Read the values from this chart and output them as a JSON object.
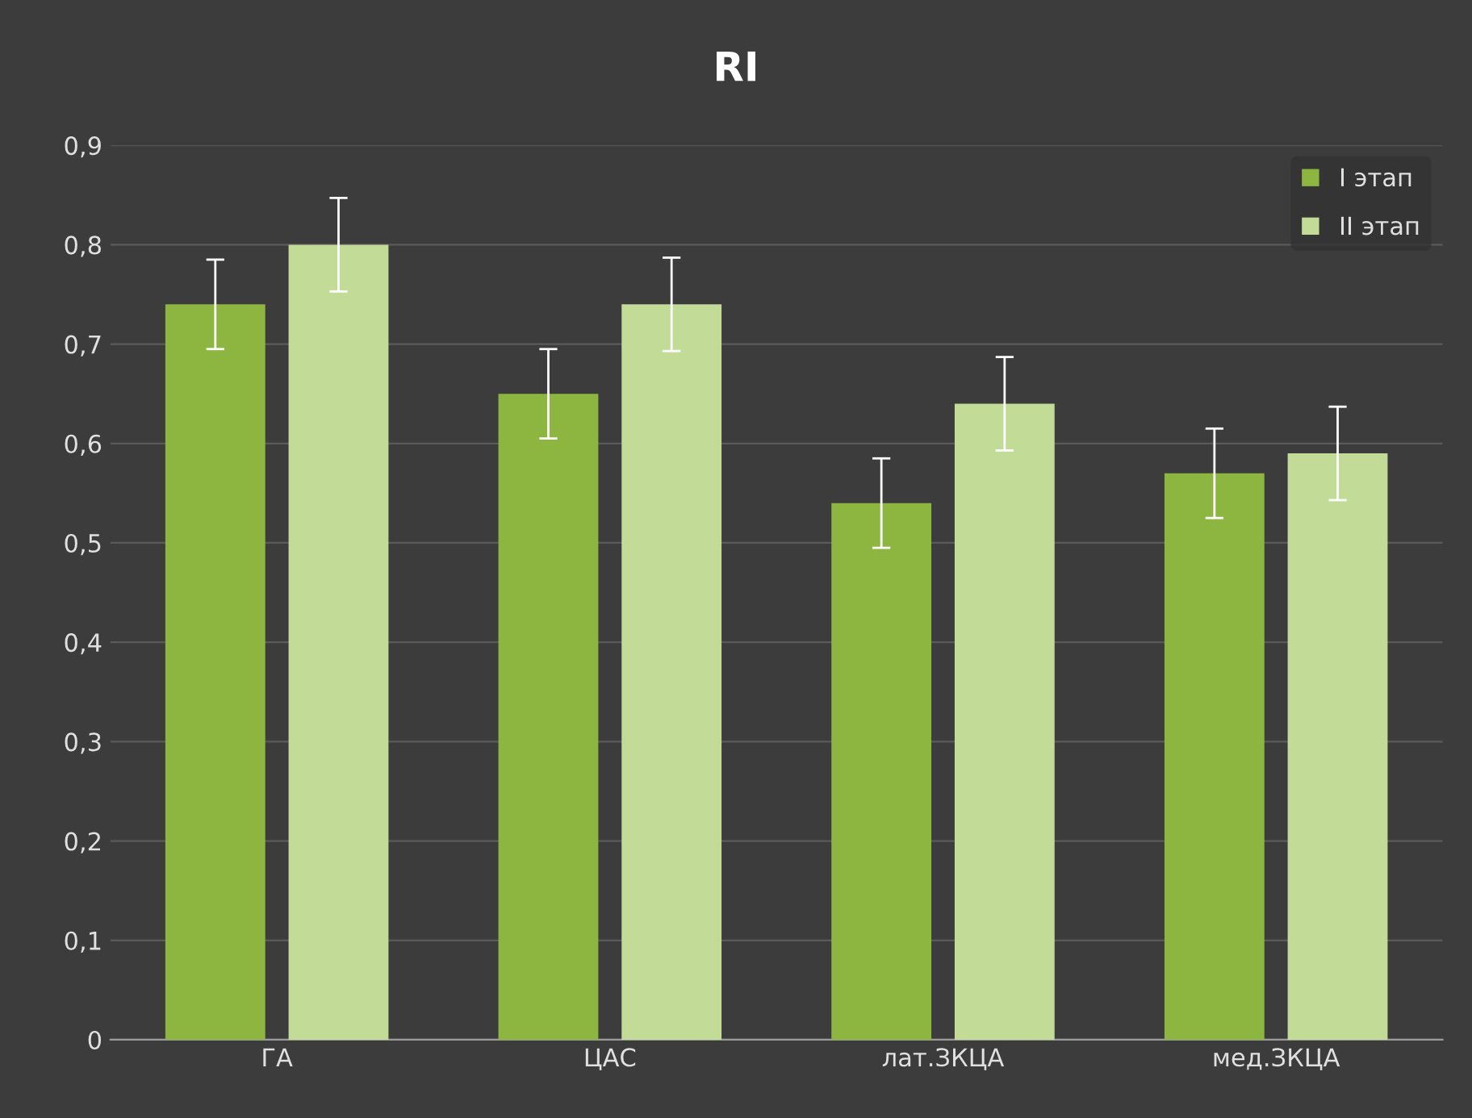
{
  "chart_data": {
    "type": "bar",
    "title": "RI",
    "categories": [
      "ГА",
      "ЦАС",
      "лат.ЗКЦА",
      "мед.ЗКЦА"
    ],
    "series": [
      {
        "name": "I этап",
        "color": "#8db641",
        "values": [
          0.74,
          0.65,
          0.54,
          0.57
        ],
        "errors": [
          0.045,
          0.045,
          0.045,
          0.045
        ]
      },
      {
        "name": "II этап",
        "color": "#c2dc98",
        "values": [
          0.8,
          0.74,
          0.64,
          0.59
        ],
        "errors": [
          0.047,
          0.047,
          0.047,
          0.047
        ]
      }
    ],
    "ylim": [
      0,
      0.9
    ],
    "yticks": [
      {
        "value": 0,
        "label": "0"
      },
      {
        "value": 0.1,
        "label": "0,1"
      },
      {
        "value": 0.2,
        "label": "0,2"
      },
      {
        "value": 0.3,
        "label": "0,3"
      },
      {
        "value": 0.4,
        "label": "0,4"
      },
      {
        "value": 0.5,
        "label": "0,5"
      },
      {
        "value": 0.6,
        "label": "0,6"
      },
      {
        "value": 0.7,
        "label": "0,7"
      },
      {
        "value": 0.8,
        "label": "0,8"
      },
      {
        "value": 0.9,
        "label": "0,9"
      }
    ],
    "grid": "y",
    "legend": "top right"
  }
}
